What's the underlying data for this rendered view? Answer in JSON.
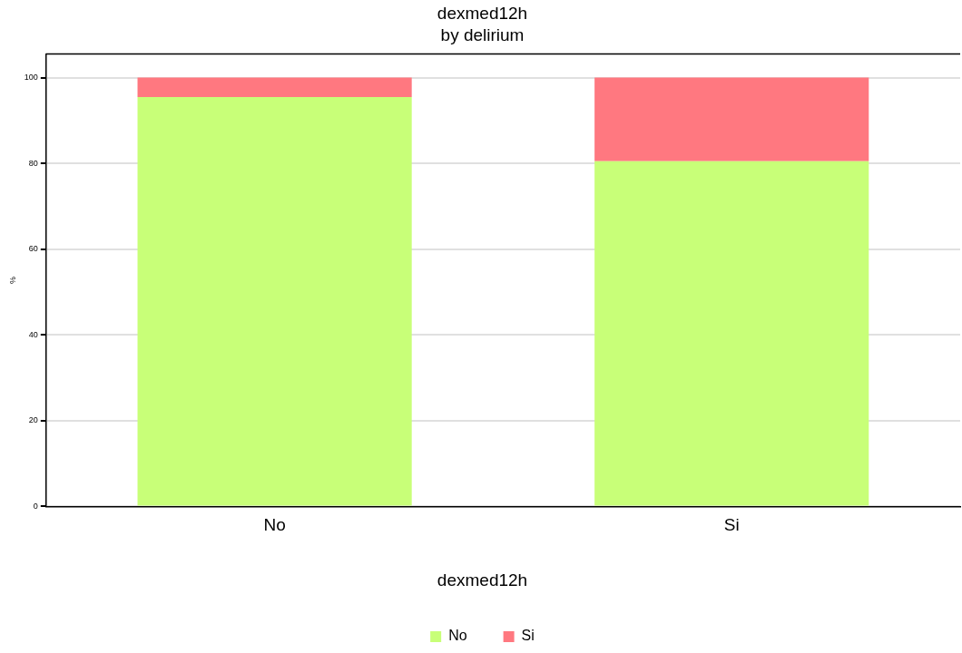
{
  "chart_data": {
    "type": "bar",
    "title": "dexmed12h",
    "subtitle": "by delirium",
    "ylabel": "%",
    "legend_title": "dexmed12h",
    "categories": [
      "No",
      "Si"
    ],
    "stacked": true,
    "series": [
      {
        "name": "No",
        "color": "#c8ff78",
        "values": [
          95.5,
          80.5
        ]
      },
      {
        "name": "Si",
        "color": "#ff7880",
        "values": [
          4.5,
          19.5
        ]
      }
    ],
    "ylim": [
      0,
      105.5
    ],
    "yticks": [
      0,
      20,
      40,
      60,
      80,
      100
    ],
    "grid": "y",
    "legend": "bottom"
  }
}
